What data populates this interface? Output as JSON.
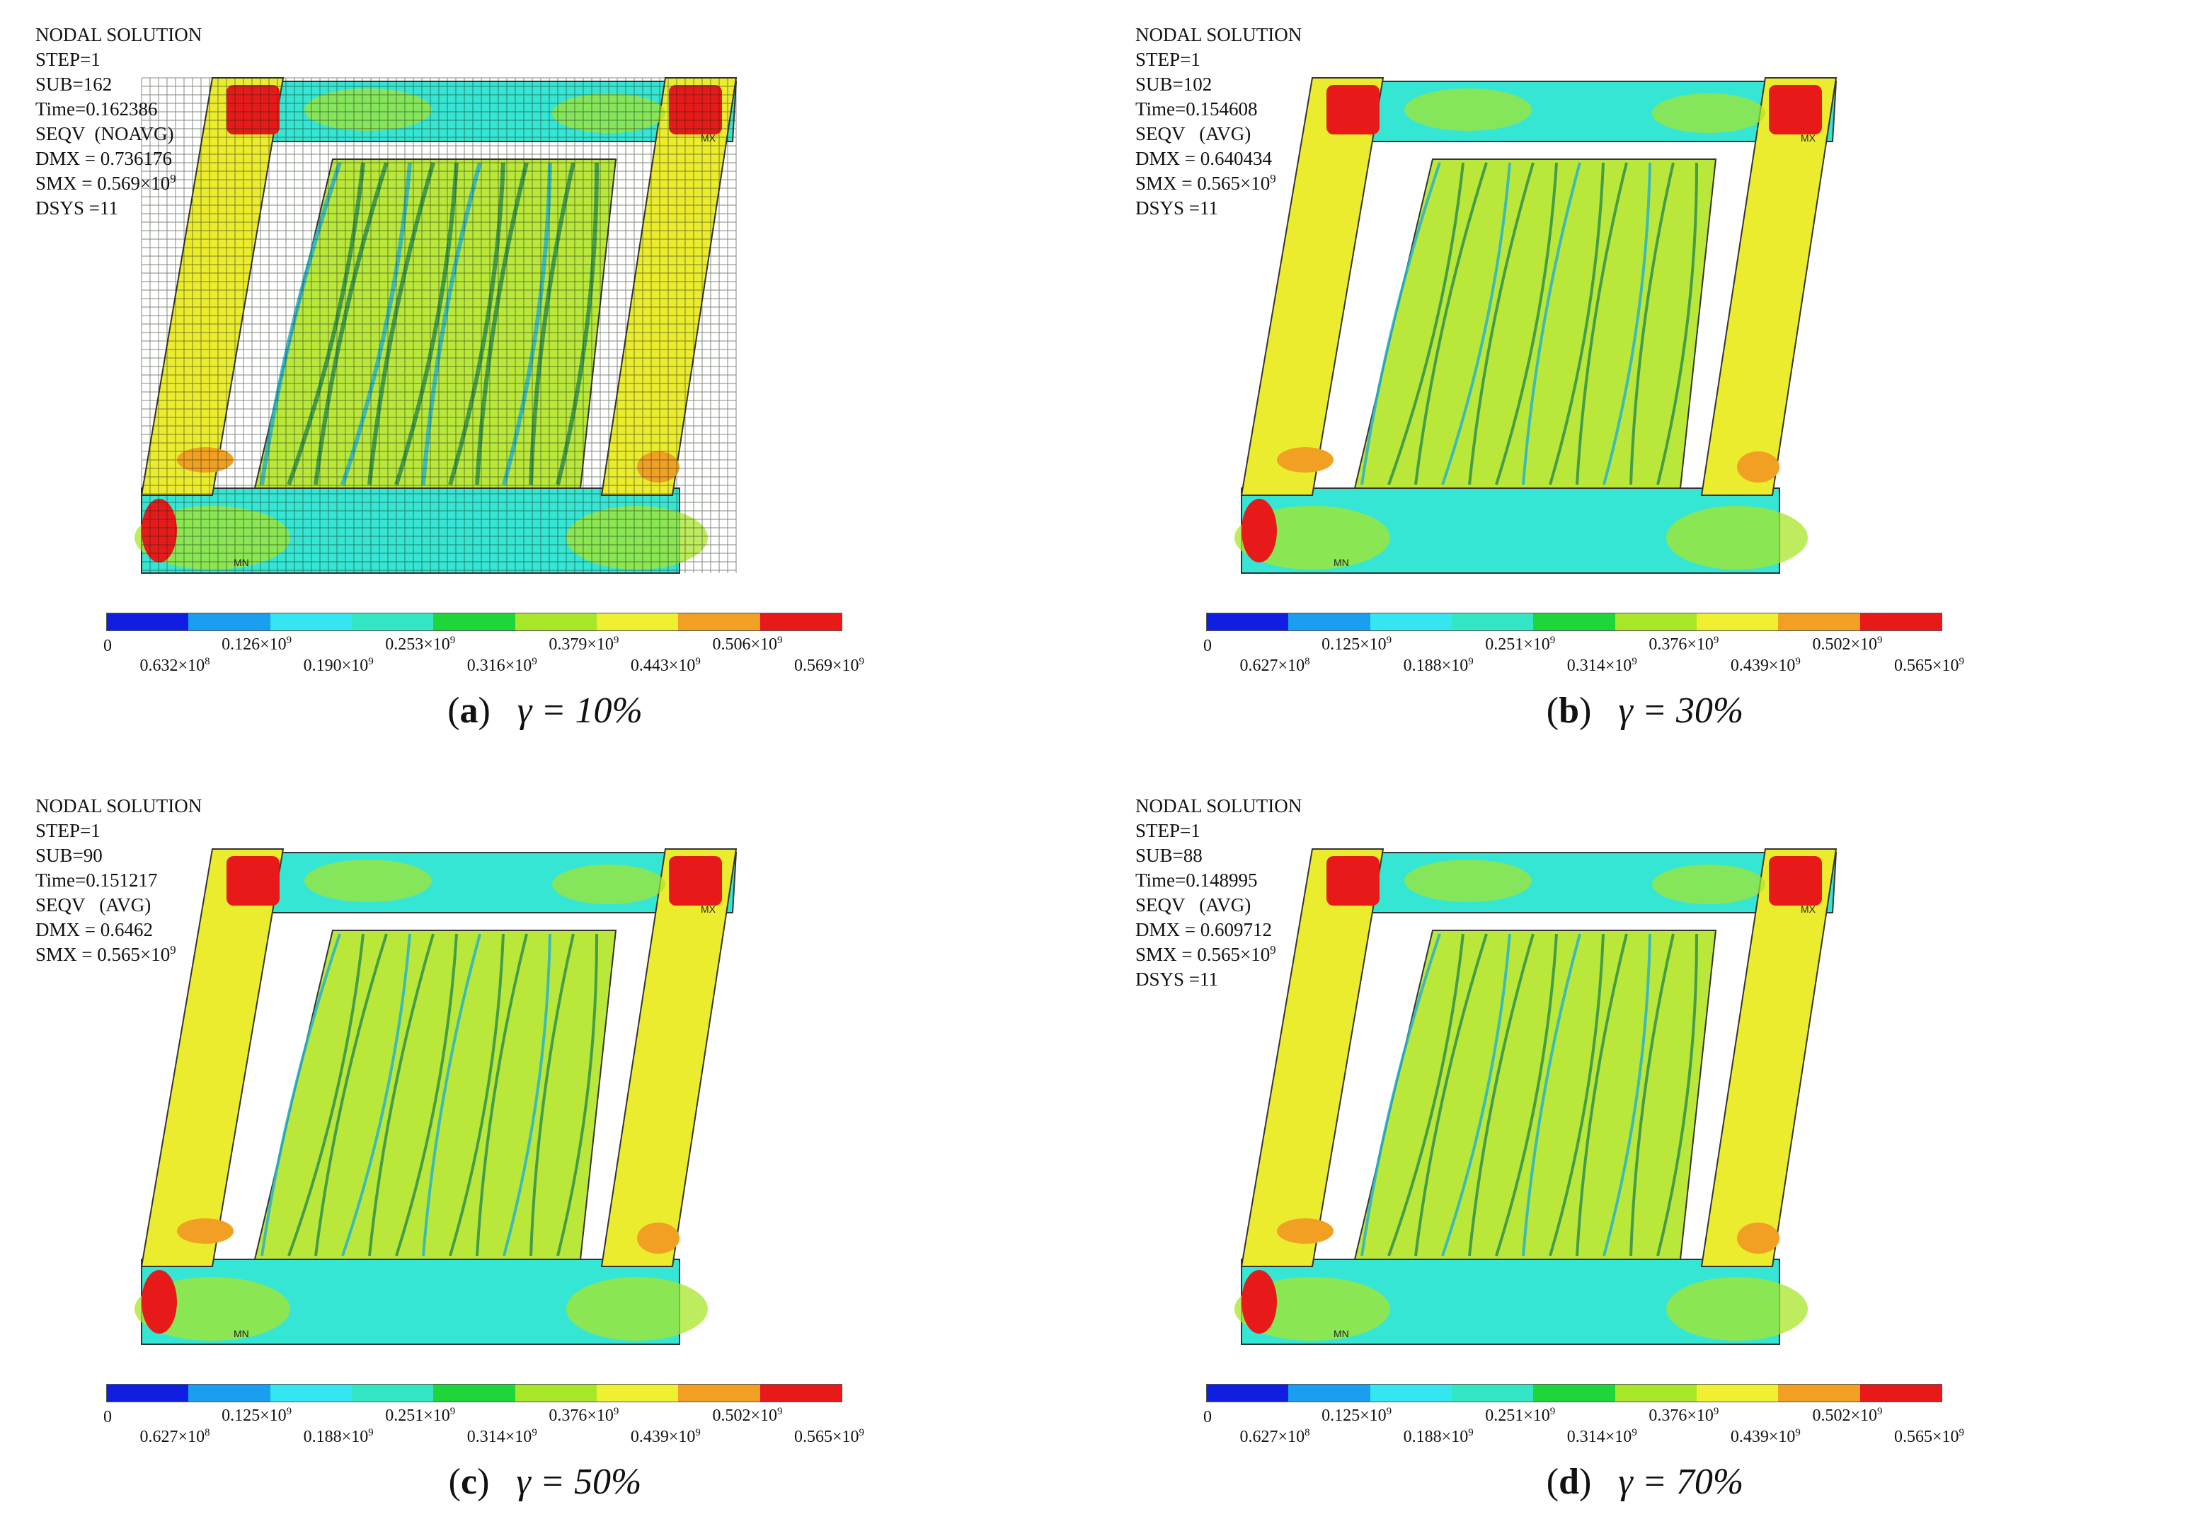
{
  "colors": {
    "legend": [
      "#0f1ee0",
      "#1a9ef0",
      "#33e6f0",
      "#33e6c4",
      "#1fd63a",
      "#a8e62a",
      "#f0f033",
      "#f2a024",
      "#e81919"
    ],
    "frame": "#ecec2e",
    "beam": "#35e6d4",
    "corner": "#e81919",
    "web_light": "#b9e83a",
    "web_dark": "#2f8f4a",
    "mesh": "#1d2a18"
  },
  "panels": [
    {
      "id": "a",
      "info": [
        "NODAL SOLUTION",
        "STEP=1",
        "SUB=162",
        "Time=0.162386",
        "SEQV  (NOAVG)",
        "DMX = 0.736176",
        "SMX = 0.569×10^9",
        "DSYS =11"
      ],
      "legend_ticks": [
        "0",
        "0.632×10^8",
        "0.126×10^9",
        "0.190×10^9",
        "0.253×10^9",
        "0.316×10^9",
        "0.379×10^9",
        "0.443×10^9",
        "0.506×10^9",
        "0.569×10^9"
      ],
      "caption_letter": "a",
      "caption_gamma": "γ = 10%",
      "meshed": true
    },
    {
      "id": "b",
      "info": [
        "NODAL SOLUTION",
        "STEP=1",
        "SUB=102",
        "Time=0.154608",
        "SEQV   (AVG)",
        "DMX = 0.640434",
        "SMX = 0.565×10^9",
        "DSYS =11"
      ],
      "legend_ticks": [
        "0",
        "0.627×10^8",
        "0.125×10^9",
        "0.188×10^9",
        "0.251×10^9",
        "0.314×10^9",
        "0.376×10^9",
        "0.439×10^9",
        "0.502×10^9",
        "0.565×10^9"
      ],
      "caption_letter": "b",
      "caption_gamma": "γ = 30%",
      "meshed": false
    },
    {
      "id": "c",
      "info": [
        "NODAL SOLUTION",
        "STEP=1",
        "SUB=90",
        "Time=0.151217",
        "SEQV   (AVG)",
        "DMX = 0.6462",
        "SMX = 0.565×10^9"
      ],
      "legend_ticks": [
        "0",
        "0.627×10^8",
        "0.125×10^9",
        "0.188×10^9",
        "0.251×10^9",
        "0.314×10^9",
        "0.376×10^9",
        "0.439×10^9",
        "0.502×10^9",
        "0.565×10^9"
      ],
      "caption_letter": "c",
      "caption_gamma": "γ = 50%",
      "meshed": false
    },
    {
      "id": "d",
      "info": [
        "NODAL SOLUTION",
        "STEP=1",
        "SUB=88",
        "Time=0.148995",
        "SEQV   (AVG)",
        "DMX = 0.609712",
        "SMX = 0.565×10^9",
        "DSYS =11"
      ],
      "legend_ticks": [
        "0",
        "0.627×10^8",
        "0.125×10^9",
        "0.188×10^9",
        "0.251×10^9",
        "0.314×10^9",
        "0.376×10^9",
        "0.439×10^9",
        "0.502×10^9",
        "0.565×10^9"
      ],
      "caption_letter": "d",
      "caption_gamma": "γ = 70%",
      "meshed": false
    }
  ]
}
